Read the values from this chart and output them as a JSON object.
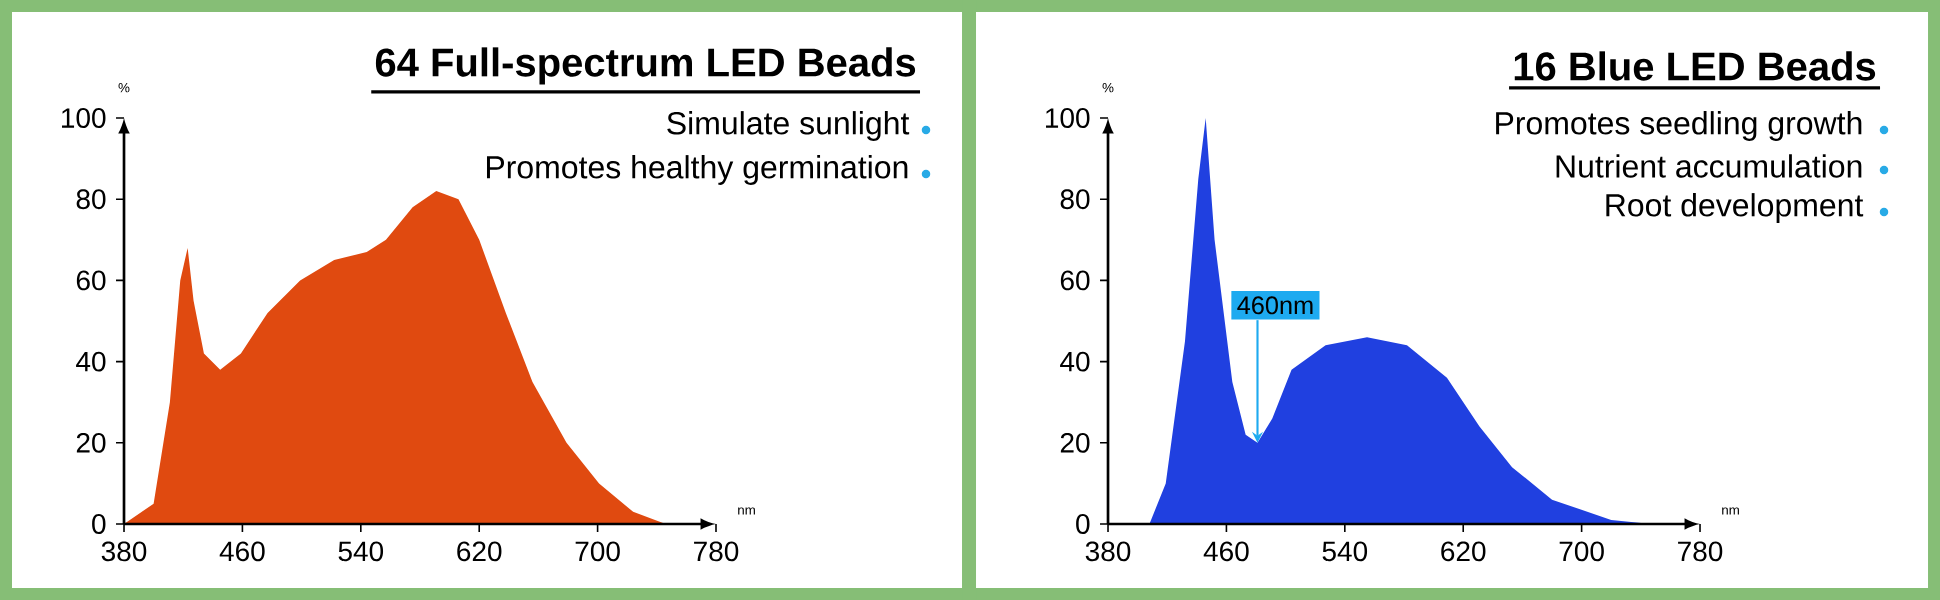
{
  "chart_data": [
    {
      "type": "area",
      "title": "64 Full-spectrum LED Beads",
      "annotations": [
        "Simulate sunlight",
        "Promotes healthy germination"
      ],
      "xlabel": "nm",
      "ylabel": "%",
      "x": [
        380,
        400,
        411,
        418,
        423,
        427,
        434,
        445,
        459,
        477,
        499,
        522,
        544,
        557,
        575,
        591,
        606,
        620,
        638,
        656,
        679,
        701,
        724,
        746
      ],
      "values": [
        0,
        5,
        30,
        60,
        68,
        55,
        42,
        38,
        42,
        52,
        60,
        65,
        67,
        70,
        78,
        82,
        80,
        70,
        52,
        35,
        20,
        10,
        3,
        0
      ],
      "color": "#e04a10",
      "xlim": [
        380,
        780
      ],
      "xticks": [
        380,
        460,
        540,
        620,
        700,
        780
      ],
      "ylim": [
        0,
        100
      ],
      "yticks": [
        0,
        20,
        40,
        60,
        80,
        100
      ]
    },
    {
      "type": "area",
      "title": "16 Blue LED Beads",
      "annotations": [
        "Promotes seedling growth",
        "Nutrient accumulation",
        "Root development",
        {
          "text": "460nm",
          "x": 481,
          "y": 20
        }
      ],
      "xlabel": "nm",
      "ylabel": "%",
      "x": [
        408,
        419,
        432,
        441,
        446,
        452,
        464,
        473,
        481,
        491,
        504,
        527,
        555,
        582,
        609,
        631,
        653,
        680,
        720,
        747
      ],
      "values": [
        0,
        10,
        45,
        85,
        100,
        70,
        35,
        22,
        20,
        26,
        38,
        44,
        46,
        44,
        36,
        24,
        14,
        6,
        1,
        0
      ],
      "color": "#2040e0",
      "xlim": [
        380,
        780
      ],
      "xticks": [
        380,
        460,
        540,
        620,
        700,
        780
      ],
      "ylim": [
        0,
        100
      ],
      "yticks": [
        0,
        20,
        40,
        60,
        80,
        100
      ]
    }
  ]
}
